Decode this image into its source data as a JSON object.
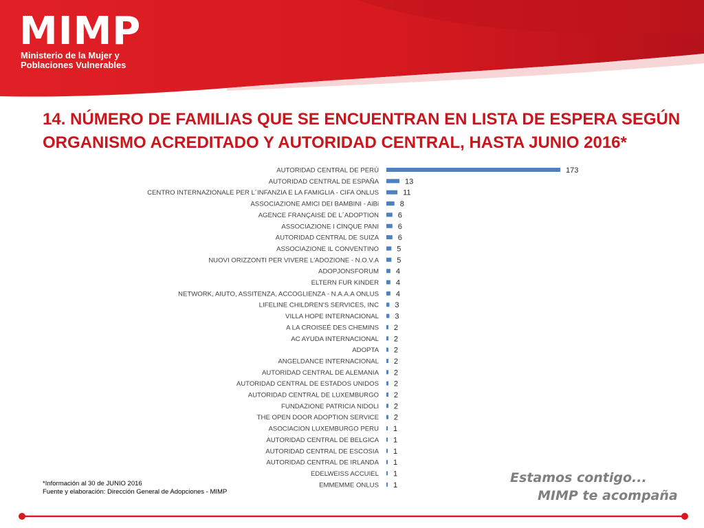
{
  "header": {
    "logo": "MIMP",
    "subtitle_line1": "Ministerio de la Mujer y",
    "subtitle_line2": "Poblaciones Vulnerables"
  },
  "colors": {
    "brand_red": "#d71920",
    "title_red": "#c8161d",
    "bar_blue": "#4f81bd",
    "slogan_gray": "#7f7f7f"
  },
  "title": {
    "line1": "14. NÚMERO DE FAMILIAS QUE SE ENCUENTRAN EN LISTA DE ESPERA SEGÚN",
    "line2": "ORGANISMO ACREDITADO Y AUTORIDAD CENTRAL, HASTA JUNIO 2016*"
  },
  "chart_data": {
    "type": "bar",
    "orientation": "horizontal",
    "title": "14. NÚMERO DE FAMILIAS QUE SE ENCUENTRAN EN LISTA DE ESPERA SEGÚN ORGANISMO ACREDITADO Y AUTORIDAD CENTRAL, HASTA JUNIO 2016*",
    "xlabel": "",
    "ylabel": "",
    "xlim": [
      0,
      173
    ],
    "grid": false,
    "legend": "none",
    "categories": [
      "AUTORIDAD CENTRAL DE PERÚ",
      "AUTORIDAD CENTRAL DE ESPAÑA",
      "CENTRO INTERNAZIONALE PER L´INFANZIA E LA FAMIGLIA - CIFA ONLUS",
      "ASSOCIAZIONE AMICI DEI BAMBINI - AiBi",
      "AGENCE FRANÇAISE DE L´ADOPTION",
      "ASSOCIAZIONE I CINQUE PANI",
      "AUTORIDAD CENTRAL DE SUIZA",
      "ASSOCIAZIONE IL CONVENTINO",
      "NUOVI ORIZZONTI PER VIVERE L'ADOZIONE -  N.O.V.A",
      "ADOPJONSFORUM",
      "ELTERN FUR KINDER",
      "NETWORK, AIUTO, ASSITENZA, ACCOGLIENZA - N.A.A.A ONLUS",
      "LIFELINE CHILDREN'S SERVICES, INC",
      "VILLA HOPE INTERNACIONAL",
      "A LA CROISEÉ DES CHEMINS",
      "AC AYUDA INTERNACIONAL",
      "ADOPTA",
      "ANGELDANCE INTERNACIONAL",
      "AUTORIDAD CENTRAL DE ALEMANIA",
      "AUTORIDAD CENTRAL DE ESTADOS UNIDOS",
      "AUTORIDAD CENTRAL DE LUXEMBURGO",
      "FUNDAZIONE PATRICIA NIDOLI",
      "THE OPEN DOOR ADOPTION SERVICE",
      "ASOCIACION LUXEMBURGO PERU",
      "AUTORIDAD CENTRAL DE BELGICA",
      "AUTORIDAD CENTRAL DE ESCOSIA",
      "AUTORIDAD CENTRAL DE IRLANDA",
      "EDELWEISS ACCUIEL",
      "EMMEMME ONLUS"
    ],
    "values": [
      173,
      13,
      11,
      8,
      6,
      6,
      6,
      5,
      5,
      4,
      4,
      4,
      3,
      3,
      2,
      2,
      2,
      2,
      2,
      2,
      2,
      2,
      2,
      1,
      1,
      1,
      1,
      1,
      1
    ]
  },
  "footnotes": {
    "note1": "*Información al 30 de JUNIO 2016",
    "note2": "Fuente y elaboración: Dirección General de Adopciones - MIMP"
  },
  "slogan": {
    "line1": "Estamos contigo...",
    "line2": "MIMP te acompaña"
  }
}
